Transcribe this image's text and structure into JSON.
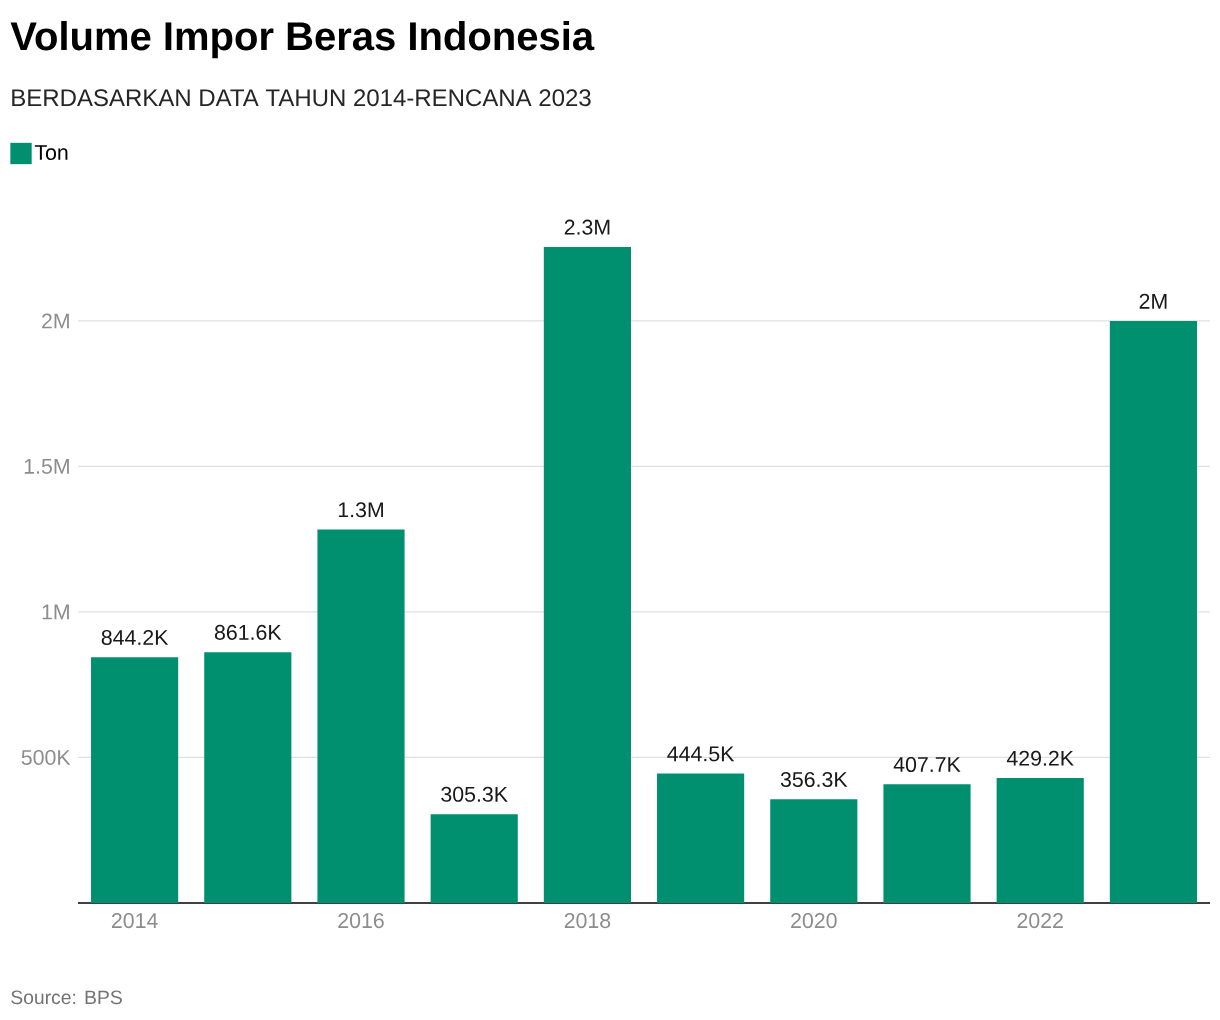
{
  "chart_data": {
    "type": "bar",
    "title": "Volume Impor Beras Indonesia",
    "subtitle": "BERDASARKAN DATA TAHUN 2014-RENCANA 2023",
    "categories": [
      "2014",
      null,
      "2016",
      null,
      "2018",
      null,
      "2020",
      null,
      "2022",
      null
    ],
    "series": [
      {
        "name": "Ton",
        "color": "#00906f",
        "values": [
          844200,
          861600,
          1283000,
          305300,
          2254000,
          444500,
          356300,
          407700,
          429200,
          2000000
        ],
        "value_labels": [
          "844.2K",
          "861.6K",
          "1.3M",
          "305.3K",
          "2.3M",
          "444.5K",
          "356.3K",
          "407.7K",
          "429.2K",
          "2M"
        ]
      }
    ],
    "yticks": [
      {
        "value": 500000,
        "label": "500K"
      },
      {
        "value": 1000000,
        "label": "1M"
      },
      {
        "value": 1500000,
        "label": "1.5M"
      },
      {
        "value": 2000000,
        "label": "2M"
      }
    ],
    "ylim": [
      0,
      2254000
    ],
    "grid": "y",
    "legend": "top left",
    "annotations": [
      "Source: BPS"
    ]
  }
}
